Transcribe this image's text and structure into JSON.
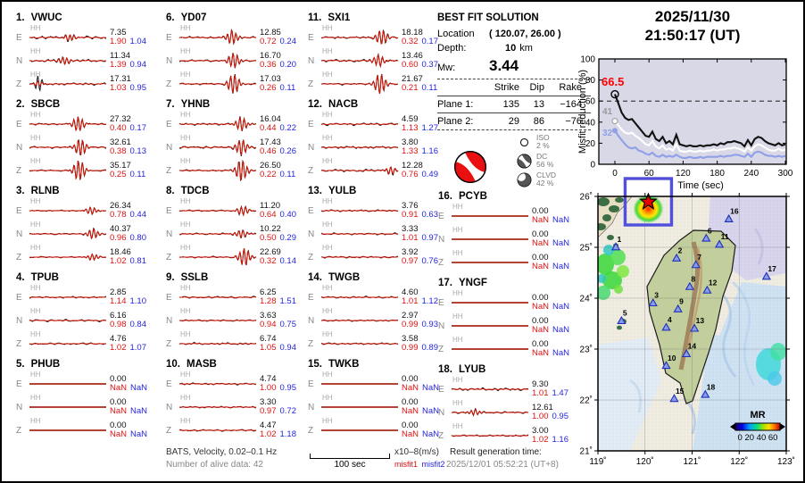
{
  "header": {
    "date": "2025/11/30",
    "time": "21:50:17  (UT)"
  },
  "solution": {
    "title": "BEST FIT SOLUTION",
    "location_label": "Location",
    "location_value": "( 120.07,  26.00 )",
    "depth_label": "Depth:",
    "depth_value": "10",
    "depth_unit": "km",
    "mw_label": "Mw:",
    "mw_value": "3.44",
    "table": {
      "headers": [
        "Strike",
        "Dip",
        "Rake"
      ],
      "rows": [
        {
          "label": "Plane 1:",
          "strike": "135",
          "dip": "13",
          "rake": "−164"
        },
        {
          "label": "Plane 2:",
          "strike": "29",
          "dip": "86",
          "rake": "−76"
        }
      ]
    },
    "decomposition": [
      {
        "name": "ISO",
        "pct": "2 %"
      },
      {
        "name": "DC",
        "pct": "56 %"
      },
      {
        "name": "CLVD",
        "pct": "42 %"
      }
    ]
  },
  "misfit_plot": {
    "type": "line",
    "ylabel": "Misfit reduction (%)",
    "xlabel": "Time (sec)",
    "yticks": [
      0,
      20,
      40,
      60,
      80,
      100
    ],
    "xticks": [
      0,
      60,
      120,
      180,
      240,
      300
    ],
    "ylim": [
      0,
      100
    ],
    "xlim": [
      0,
      300
    ],
    "dashed_y": 60,
    "background": "#d8d8e6",
    "annotations": [
      {
        "text": "66.5",
        "color": "#ff0000"
      },
      {
        "text": "41",
        "color": "#9a9a9a"
      },
      {
        "text": "32",
        "color": "#8f9fe8"
      }
    ],
    "x_step": 6,
    "series": [
      {
        "name": "misfit-low",
        "color": "#8f9fe8",
        "values": [
          32,
          27,
          23,
          19,
          16,
          15,
          16,
          13,
          12,
          10,
          9,
          11,
          8,
          7,
          9,
          7,
          8,
          7,
          9,
          7,
          6,
          6,
          7,
          6,
          6,
          7,
          6,
          7,
          7,
          7,
          7,
          8,
          7,
          8,
          8,
          9,
          9,
          8,
          7,
          10,
          7,
          11,
          12,
          11,
          9,
          8,
          8,
          7,
          8,
          7,
          8
        ]
      },
      {
        "name": "misfit-mid",
        "color": "#ffffff",
        "values": [
          41,
          37,
          33,
          30,
          29,
          30,
          27,
          25,
          22,
          19,
          18,
          22,
          17,
          15,
          18,
          14,
          15,
          13,
          19,
          13,
          12,
          12,
          13,
          12,
          12,
          13,
          12,
          13,
          13,
          14,
          13,
          14,
          14,
          15,
          15,
          16,
          15,
          14,
          12,
          16,
          13,
          17,
          19,
          18,
          16,
          14,
          13,
          13,
          15,
          13,
          14
        ]
      },
      {
        "name": "misfit-best",
        "color": "#111111",
        "values": [
          66.5,
          58,
          49,
          44,
          42,
          43,
          39,
          35,
          31,
          27,
          26,
          31,
          24,
          22,
          26,
          20,
          22,
          19,
          28,
          19,
          18,
          17,
          18,
          17,
          17,
          18,
          17,
          18,
          18,
          19,
          18,
          20,
          19,
          21,
          21,
          22,
          21,
          20,
          17,
          23,
          18,
          24,
          26,
          25,
          22,
          20,
          19,
          18,
          20,
          18,
          19
        ]
      }
    ]
  },
  "map": {
    "lat_ticks": [
      "26˚",
      "25˚",
      "24˚",
      "23˚",
      "22˚",
      "21˚"
    ],
    "lon_ticks": [
      "119˚",
      "120˚",
      "121˚",
      "122˚",
      "123˚"
    ],
    "lat_vals": [
      26,
      25,
      24,
      23,
      22,
      21
    ],
    "lon_vals": [
      119,
      120,
      121,
      122,
      123
    ],
    "colorbar": {
      "label": "MR",
      "ticks": "0 20 40 60"
    },
    "event": {
      "lon": 120.07,
      "lat": 26.0
    },
    "stations": [
      {
        "n": "1",
        "lon": 119.38,
        "lat": 25.0
      },
      {
        "n": "2",
        "lon": 120.67,
        "lat": 24.78
      },
      {
        "n": "3",
        "lon": 120.17,
        "lat": 23.9
      },
      {
        "n": "4",
        "lon": 120.45,
        "lat": 23.42
      },
      {
        "n": "5",
        "lon": 119.5,
        "lat": 23.55
      },
      {
        "n": "6",
        "lon": 121.3,
        "lat": 25.17
      },
      {
        "n": "7",
        "lon": 121.08,
        "lat": 24.65
      },
      {
        "n": "8",
        "lon": 120.95,
        "lat": 24.22
      },
      {
        "n": "9",
        "lon": 120.7,
        "lat": 23.78
      },
      {
        "n": "10",
        "lon": 120.45,
        "lat": 22.67
      },
      {
        "n": "11",
        "lon": 121.58,
        "lat": 25.05
      },
      {
        "n": "12",
        "lon": 121.32,
        "lat": 24.15
      },
      {
        "n": "13",
        "lon": 121.05,
        "lat": 23.4
      },
      {
        "n": "14",
        "lon": 120.88,
        "lat": 22.9
      },
      {
        "n": "15",
        "lon": 120.62,
        "lat": 22.02
      },
      {
        "n": "16",
        "lon": 121.78,
        "lat": 25.55
      },
      {
        "n": "17",
        "lon": 122.58,
        "lat": 24.42
      },
      {
        "n": "18",
        "lon": 121.28,
        "lat": 22.1
      }
    ]
  },
  "footer": {
    "filter": "BATS, Velocity, 0.02–0.1 Hz",
    "alive": "Number of alive data: 42",
    "scale": "100 sec",
    "unit": "x10–8(m/s)",
    "misfit1": "misfit1",
    "misfit2": "misfit2",
    "result_label": "Result generation time:",
    "result_value": "2025/12/01 05:52:21 (UT+8)"
  },
  "stations": [
    {
      "num": "1.",
      "name": "VWUC",
      "components": [
        {
          "ch": "HH",
          "comp": "E",
          "amp": "7.35",
          "m1": "1.90",
          "m2": "1.04",
          "k": "burst",
          "p": 0.52,
          "na": 1.5,
          "ba": 1.5
        },
        {
          "ch": "HH",
          "comp": "N",
          "amp": "11.34",
          "m1": "1.39",
          "m2": "0.94",
          "k": "burst",
          "p": 0.45,
          "na": 1.4,
          "ba": 1.7
        },
        {
          "ch": "HH",
          "comp": "Z",
          "amp": "17.31",
          "m1": "1.03",
          "m2": "0.95",
          "k": "burst2",
          "p": 0.12,
          "na": 1.2,
          "ba": 3.2
        }
      ]
    },
    {
      "num": "2.",
      "name": "SBCB",
      "components": [
        {
          "ch": "HH",
          "comp": "E",
          "amp": "27.32",
          "m1": "0.40",
          "m2": "0.17",
          "k": "burst",
          "p": 0.63,
          "na": 1.0,
          "ba": 3.4
        },
        {
          "ch": "HH",
          "comp": "N",
          "amp": "32.61",
          "m1": "0.38",
          "m2": "0.13",
          "k": "burst",
          "p": 0.66,
          "na": 1.0,
          "ba": 3.8
        },
        {
          "ch": "HH",
          "comp": "Z",
          "amp": "35.17",
          "m1": "0.25",
          "m2": "0.11",
          "k": "burst",
          "p": 0.64,
          "na": 0.8,
          "ba": 4.6
        }
      ]
    },
    {
      "num": "3.",
      "name": "RLNB",
      "components": [
        {
          "ch": "HH",
          "comp": "E",
          "amp": "26.34",
          "m1": "0.78",
          "m2": "0.44",
          "k": "burst",
          "p": 0.8,
          "na": 0.7,
          "ba": 1.6
        },
        {
          "ch": "HH",
          "comp": "N",
          "amp": "40.37",
          "m1": "0.96",
          "m2": "0.80",
          "k": "burst",
          "p": 0.82,
          "na": 0.8,
          "ba": 2.2
        },
        {
          "ch": "HH",
          "comp": "Z",
          "amp": "18.46",
          "m1": "1.02",
          "m2": "0.81",
          "k": "burst",
          "p": 0.82,
          "na": 0.7,
          "ba": 1.4
        }
      ]
    },
    {
      "num": "4.",
      "name": "TPUB",
      "components": [
        {
          "ch": "HH",
          "comp": "E",
          "amp": "2.85",
          "m1": "1.14",
          "m2": "1.10",
          "k": "noise",
          "p": 0,
          "na": 0.9,
          "ba": 0
        },
        {
          "ch": "HH",
          "comp": "N",
          "amp": "6.16",
          "m1": "0.98",
          "m2": "0.84",
          "k": "noise",
          "p": 0,
          "na": 1.1,
          "ba": 0
        },
        {
          "ch": "HH",
          "comp": "Z",
          "amp": "4.76",
          "m1": "1.02",
          "m2": "1.07",
          "k": "noise",
          "p": 0,
          "na": 1.0,
          "ba": 0
        }
      ]
    },
    {
      "num": "5.",
      "name": "PHUB",
      "components": [
        {
          "ch": "HH",
          "comp": "E",
          "amp": "0.00",
          "m1": "NaN",
          "m2": "NaN",
          "k": "flat",
          "p": 0,
          "na": 0,
          "ba": 0
        },
        {
          "ch": "HH",
          "comp": "N",
          "amp": "0.00",
          "m1": "NaN",
          "m2": "NaN",
          "k": "flat",
          "p": 0,
          "na": 0,
          "ba": 0
        },
        {
          "ch": "HH",
          "comp": "Z",
          "amp": "0.00",
          "m1": "NaN",
          "m2": "NaN",
          "k": "flat",
          "p": 0,
          "na": 0,
          "ba": 0
        }
      ]
    },
    {
      "num": "6.",
      "name": "YD07",
      "components": [
        {
          "ch": "HH",
          "comp": "E",
          "amp": "12.85",
          "m1": "0.72",
          "m2": "0.24",
          "k": "burst",
          "p": 0.68,
          "na": 1.0,
          "ba": 3.0
        },
        {
          "ch": "HH",
          "comp": "N",
          "amp": "16.70",
          "m1": "0.36",
          "m2": "0.20",
          "k": "burst",
          "p": 0.7,
          "na": 1.1,
          "ba": 3.4
        },
        {
          "ch": "HH",
          "comp": "Z",
          "amp": "17.03",
          "m1": "0.26",
          "m2": "0.11",
          "k": "burst",
          "p": 0.7,
          "na": 0.9,
          "ba": 4.4
        }
      ]
    },
    {
      "num": "7.",
      "name": "YHNB",
      "components": [
        {
          "ch": "HH",
          "comp": "E",
          "amp": "16.04",
          "m1": "0.44",
          "m2": "0.22",
          "k": "burst",
          "p": 0.8,
          "na": 1.1,
          "ba": 3.0
        },
        {
          "ch": "HH",
          "comp": "N",
          "amp": "17.43",
          "m1": "0.46",
          "m2": "0.26",
          "k": "burst",
          "p": 0.8,
          "na": 1.2,
          "ba": 3.6
        },
        {
          "ch": "HH",
          "comp": "Z",
          "amp": "26.50",
          "m1": "0.22",
          "m2": "0.11",
          "k": "burst",
          "p": 0.8,
          "na": 0.9,
          "ba": 4.8
        }
      ]
    },
    {
      "num": "8.",
      "name": "TDCB",
      "components": [
        {
          "ch": "HH",
          "comp": "E",
          "amp": "11.20",
          "m1": "0.64",
          "m2": "0.40",
          "k": "burst",
          "p": 0.82,
          "na": 0.9,
          "ba": 2.0
        },
        {
          "ch": "HH",
          "comp": "N",
          "amp": "10.22",
          "m1": "0.50",
          "m2": "0.29",
          "k": "burst",
          "p": 0.8,
          "na": 0.9,
          "ba": 1.8
        },
        {
          "ch": "HH",
          "comp": "Z",
          "amp": "22.69",
          "m1": "0.32",
          "m2": "0.14",
          "k": "burst",
          "p": 0.84,
          "na": 0.8,
          "ba": 4.0
        }
      ]
    },
    {
      "num": "9.",
      "name": "SSLB",
      "components": [
        {
          "ch": "HH",
          "comp": "E",
          "amp": "6.25",
          "m1": "1.28",
          "m2": "1.51",
          "k": "noise",
          "p": 0,
          "na": 1.0,
          "ba": 0
        },
        {
          "ch": "HH",
          "comp": "N",
          "amp": "3.63",
          "m1": "0.94",
          "m2": "0.75",
          "k": "noise",
          "p": 0,
          "na": 0.9,
          "ba": 0
        },
        {
          "ch": "HH",
          "comp": "Z",
          "amp": "6.74",
          "m1": "1.05",
          "m2": "0.94",
          "k": "noise",
          "p": 0,
          "na": 1.1,
          "ba": 0
        }
      ]
    },
    {
      "num": "10.",
      "name": "MASB",
      "components": [
        {
          "ch": "HH",
          "comp": "E",
          "amp": "4.74",
          "m1": "1.00",
          "m2": "0.95",
          "k": "noise",
          "p": 0,
          "na": 1.0,
          "ba": 0
        },
        {
          "ch": "HH",
          "comp": "N",
          "amp": "3.30",
          "m1": "0.97",
          "m2": "0.72",
          "k": "noise",
          "p": 0,
          "na": 0.9,
          "ba": 0
        },
        {
          "ch": "HH",
          "comp": "Z",
          "amp": "4.47",
          "m1": "1.02",
          "m2": "1.18",
          "k": "noise",
          "p": 0,
          "na": 1.0,
          "ba": 0
        }
      ]
    },
    {
      "num": "11.",
      "name": "SXI1",
      "components": [
        {
          "ch": "HH",
          "comp": "E",
          "amp": "18.18",
          "m1": "0.32",
          "m2": "0.17",
          "k": "burst",
          "p": 0.78,
          "na": 1.1,
          "ba": 3.4
        },
        {
          "ch": "HH",
          "comp": "N",
          "amp": "13.46",
          "m1": "0.60",
          "m2": "0.37",
          "k": "burst",
          "p": 0.74,
          "na": 1.3,
          "ba": 2.6
        },
        {
          "ch": "HH",
          "comp": "Z",
          "amp": "21.67",
          "m1": "0.21",
          "m2": "0.11",
          "k": "burst",
          "p": 0.76,
          "na": 0.9,
          "ba": 4.6
        }
      ]
    },
    {
      "num": "12.",
      "name": "NACB",
      "components": [
        {
          "ch": "HH",
          "comp": "E",
          "amp": "4.59",
          "m1": "1.13",
          "m2": "1.27",
          "k": "noise",
          "p": 0,
          "na": 1.3,
          "ba": 0
        },
        {
          "ch": "HH",
          "comp": "N",
          "amp": "3.80",
          "m1": "1.33",
          "m2": "1.16",
          "k": "noise",
          "p": 0,
          "na": 1.2,
          "ba": 0
        },
        {
          "ch": "HH",
          "comp": "Z",
          "amp": "12.28",
          "m1": "0.76",
          "m2": "0.49",
          "k": "burst",
          "p": 0.9,
          "na": 1.3,
          "ba": 1.6
        }
      ]
    },
    {
      "num": "13.",
      "name": "YULB",
      "components": [
        {
          "ch": "HH",
          "comp": "E",
          "amp": "3.76",
          "m1": "0.91",
          "m2": "0.63",
          "k": "noise",
          "p": 0,
          "na": 1.0,
          "ba": 0
        },
        {
          "ch": "HH",
          "comp": "N",
          "amp": "3.33",
          "m1": "1.01",
          "m2": "0.97",
          "k": "noise",
          "p": 0,
          "na": 1.0,
          "ba": 0
        },
        {
          "ch": "HH",
          "comp": "Z",
          "amp": "3.92",
          "m1": "0.97",
          "m2": "0.76",
          "k": "noise",
          "p": 0,
          "na": 1.0,
          "ba": 0
        }
      ]
    },
    {
      "num": "14.",
      "name": "TWGB",
      "components": [
        {
          "ch": "HH",
          "comp": "E",
          "amp": "4.60",
          "m1": "1.01",
          "m2": "1.12",
          "k": "noise",
          "p": 0,
          "na": 1.0,
          "ba": 0
        },
        {
          "ch": "HH",
          "comp": "N",
          "amp": "2.97",
          "m1": "0.99",
          "m2": "0.93",
          "k": "noise",
          "p": 0,
          "na": 0.9,
          "ba": 0
        },
        {
          "ch": "HH",
          "comp": "Z",
          "amp": "3.58",
          "m1": "0.99",
          "m2": "0.89",
          "k": "noise",
          "p": 0,
          "na": 1.0,
          "ba": 0
        }
      ]
    },
    {
      "num": "15.",
      "name": "TWKB",
      "components": [
        {
          "ch": "HH",
          "comp": "E",
          "amp": "0.00",
          "m1": "NaN",
          "m2": "NaN",
          "k": "flat",
          "p": 0,
          "na": 0,
          "ba": 0
        },
        {
          "ch": "HH",
          "comp": "N",
          "amp": "0.00",
          "m1": "NaN",
          "m2": "NaN",
          "k": "flat",
          "p": 0,
          "na": 0,
          "ba": 0
        },
        {
          "ch": "HH",
          "comp": "Z",
          "amp": "0.00",
          "m1": "NaN",
          "m2": "NaN",
          "k": "flat",
          "p": 0,
          "na": 0,
          "ba": 0
        }
      ]
    },
    {
      "num": "16.",
      "name": "PCYB",
      "components": [
        {
          "ch": "HH",
          "comp": "E",
          "amp": "0.00",
          "m1": "NaN",
          "m2": "NaN",
          "k": "flat",
          "p": 0,
          "na": 0,
          "ba": 0
        },
        {
          "ch": "HH",
          "comp": "N",
          "amp": "0.00",
          "m1": "NaN",
          "m2": "NaN",
          "k": "flat",
          "p": 0,
          "na": 0,
          "ba": 0
        },
        {
          "ch": "HH",
          "comp": "Z",
          "amp": "0.00",
          "m1": "NaN",
          "m2": "NaN",
          "k": "flat",
          "p": 0,
          "na": 0,
          "ba": 0
        }
      ]
    },
    {
      "num": "17.",
      "name": "YNGF",
      "components": [
        {
          "ch": "HH",
          "comp": "E",
          "amp": "0.00",
          "m1": "NaN",
          "m2": "NaN",
          "k": "flat",
          "p": 0,
          "na": 0,
          "ba": 0
        },
        {
          "ch": "HH",
          "comp": "N",
          "amp": "0.00",
          "m1": "NaN",
          "m2": "NaN",
          "k": "flat",
          "p": 0,
          "na": 0,
          "ba": 0
        },
        {
          "ch": "HH",
          "comp": "Z",
          "amp": "0.00",
          "m1": "NaN",
          "m2": "NaN",
          "k": "flat",
          "p": 0,
          "na": 0,
          "ba": 0
        }
      ]
    },
    {
      "num": "18.",
      "name": "LYUB",
      "components": [
        {
          "ch": "HH",
          "comp": "E",
          "amp": "9.30",
          "m1": "1.01",
          "m2": "1.47",
          "k": "noise",
          "p": 0,
          "na": 1.3,
          "ba": 0
        },
        {
          "ch": "HH",
          "comp": "N",
          "amp": "12.61",
          "m1": "1.00",
          "m2": "0.95",
          "k": "burst",
          "p": 0.3,
          "na": 1.0,
          "ba": 1.3
        },
        {
          "ch": "HH",
          "comp": "Z",
          "amp": "3.00",
          "m1": "1.02",
          "m2": "1.16",
          "k": "noise",
          "p": 0,
          "na": 0.9,
          "ba": 0
        }
      ]
    }
  ]
}
